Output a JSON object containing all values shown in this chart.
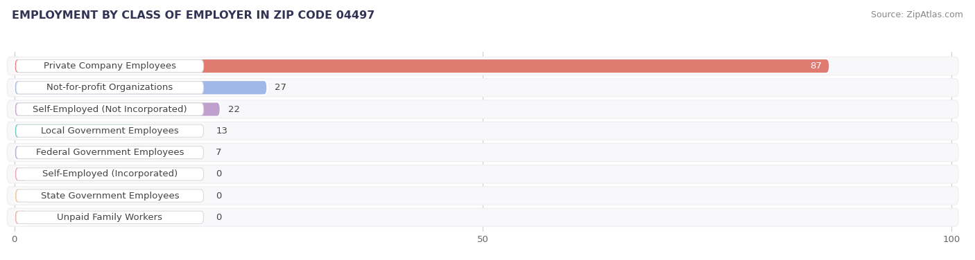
{
  "title": "EMPLOYMENT BY CLASS OF EMPLOYER IN ZIP CODE 04497",
  "source": "Source: ZipAtlas.com",
  "categories": [
    "Private Company Employees",
    "Not-for-profit Organizations",
    "Self-Employed (Not Incorporated)",
    "Local Government Employees",
    "Federal Government Employees",
    "Self-Employed (Incorporated)",
    "State Government Employees",
    "Unpaid Family Workers"
  ],
  "values": [
    87,
    27,
    22,
    13,
    7,
    0,
    0,
    0
  ],
  "bar_colors": [
    "#e07b72",
    "#a0b8e8",
    "#c0a0cc",
    "#60c8bc",
    "#b0acd8",
    "#f0a0b8",
    "#f8c898",
    "#f0b0a8"
  ],
  "bar_edge_color": "#ffffff",
  "background_color": "#f0f0f0",
  "row_bg_color": "#f8f8f8",
  "row_bg_color2": "#eeeeee",
  "label_bg_color": "#ffffff",
  "xlim_max": 100,
  "xticks": [
    0,
    50,
    100
  ],
  "title_fontsize": 11.5,
  "label_fontsize": 9.5,
  "value_fontsize": 9.5,
  "source_fontsize": 9,
  "title_color": "#333355",
  "label_color": "#444444",
  "value_color_inside": "#ffffff",
  "value_color_outside": "#444444",
  "source_color": "#888888"
}
